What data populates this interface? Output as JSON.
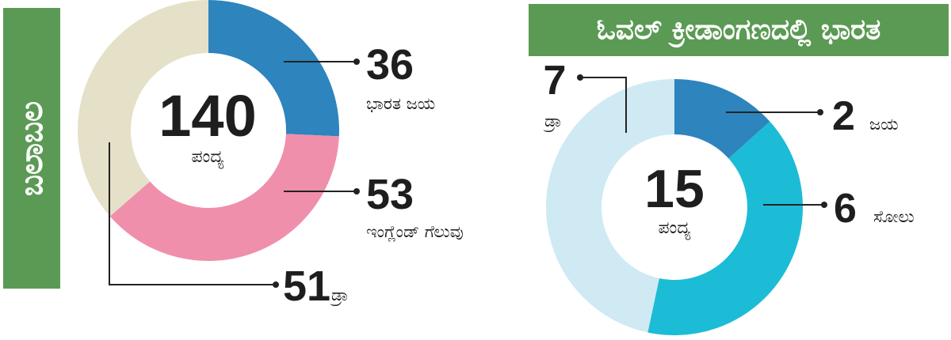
{
  "side_label": "ಬಲಾಬಲ",
  "banner_title": "ಓವಲ್ ಕ್ರೀಡಾಂಗಣದಲ್ಲಿ ಭಾರತ",
  "chart_data": [
    {
      "type": "pie",
      "variant": "donut",
      "center_value": "140",
      "center_label": "ಪಂದ್ಯ",
      "slices": [
        {
          "value": 36,
          "label": "ಭಾರತ ಜಯ",
          "color": "#2e84bd"
        },
        {
          "value": 53,
          "label": "ಇಂಗ್ಲೆಂಡ್ ಗೆಲುವು",
          "color": "#f08fab"
        },
        {
          "value": 51,
          "label": "ಡ್ರಾ",
          "color": "#e5e0c8"
        }
      ]
    },
    {
      "type": "pie",
      "variant": "donut",
      "center_value": "15",
      "center_label": "ಪಂದ್ಯ",
      "slices": [
        {
          "value": 2,
          "label": "ಜಯ",
          "color": "#2e84bd"
        },
        {
          "value": 6,
          "label": "ಸೋಲು",
          "color": "#1cbcd6"
        },
        {
          "value": 7,
          "label": "ಡ್ರಾ",
          "color": "#cfeaf2"
        }
      ]
    }
  ]
}
